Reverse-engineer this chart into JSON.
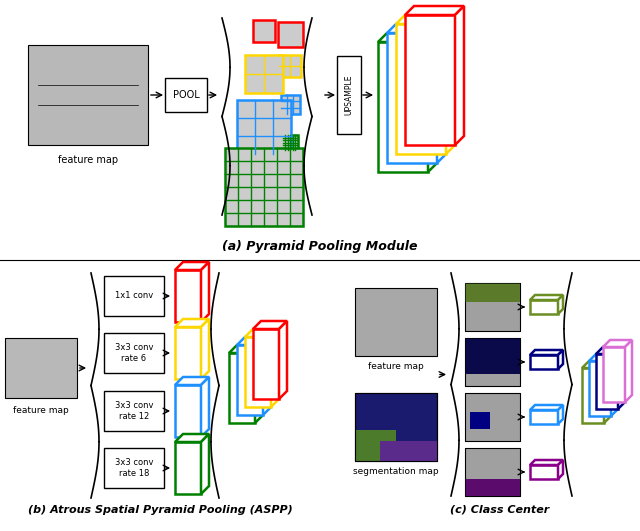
{
  "title_a": "(a) Pyramid Pooling Module",
  "title_b": "(b) Atrous Spatial Pyramid Pooling (ASPP)",
  "title_c": "(c) Class Center",
  "colors": {
    "red": "#FF0000",
    "yellow": "#FFD700",
    "blue": "#1E90FF",
    "green": "#008000",
    "dark_blue": "#000080",
    "olive": "#6B8E23",
    "purple": "#8B008B",
    "pink": "#DA70D6",
    "gray": "#AAAAAA",
    "light_gray": "#CCCCCC",
    "white": "#FFFFFF",
    "black": "#000000"
  },
  "grid_colors": [
    "#FF0000",
    "#FFD700",
    "#1E90FF",
    "#008000"
  ],
  "grid_sizes": [
    1,
    2,
    3,
    6
  ],
  "aspp_labels": [
    "1x1 conv",
    "3x3 conv\nrate 6",
    "3x3 conv\nrate 12",
    "3x3 conv\nrate 18"
  ],
  "aspp_colors": [
    "#FF0000",
    "#FFD700",
    "#1E90FF",
    "#008000"
  ],
  "stack_colors_a": [
    "#008000",
    "#1E90FF",
    "#FFD700",
    "#FF0000"
  ],
  "stack_colors_b": [
    "#008000",
    "#1E90FF",
    "#FFD700",
    "#FF0000"
  ],
  "panel_colors": [
    "#6B8E23",
    "#000080",
    "#1E90FF",
    "#8B008B"
  ],
  "panel_fill_colors": [
    "#4B6E0B",
    "#00003B",
    "#00006B",
    "#4B005B"
  ],
  "stack_colors_c": [
    "#6B8E23",
    "#1E90FF",
    "#000080",
    "#DA70D6"
  ]
}
